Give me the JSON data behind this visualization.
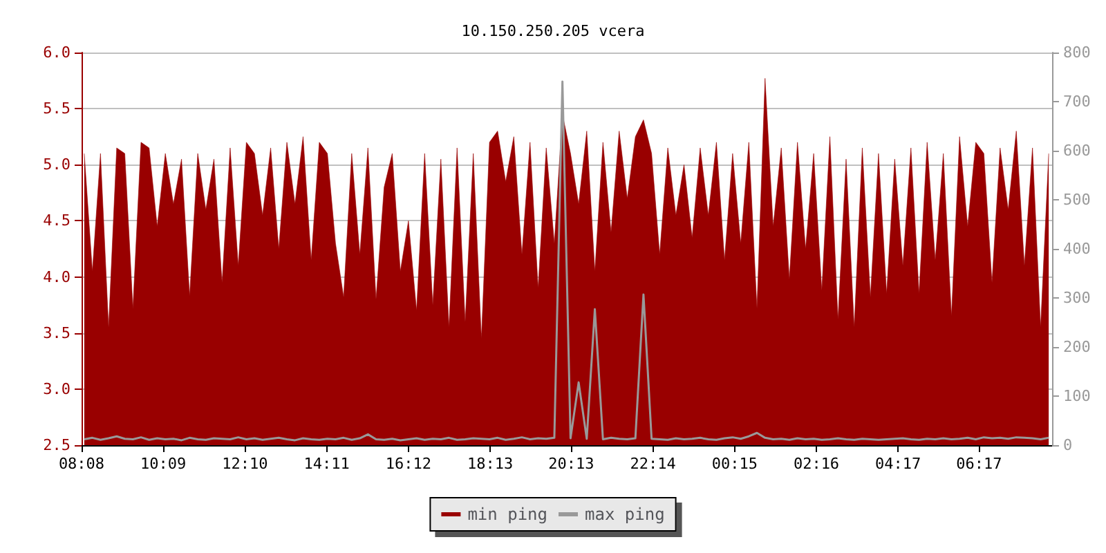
{
  "chart_data": {
    "type": "area",
    "title": "10.150.250.205 vcera",
    "x": [
      "--01-01T08:12",
      "--01-01T08:24",
      "--01-01T08:36",
      "--01-01T08:48",
      "--01-01T09:00",
      "--01-01T09:12",
      "--01-01T09:24",
      "--01-01T09:36",
      "--01-01T09:48",
      "--01-01T10:00",
      "--01-01T10:12",
      "--01-01T10:24",
      "--01-01T10:36",
      "--01-01T10:48",
      "--01-01T11:00",
      "--01-01T11:12",
      "--01-01T11:24",
      "--01-01T11:36",
      "--01-01T11:48",
      "--01-01T12:00",
      "--01-01T12:12",
      "--01-01T12:24",
      "--01-01T12:36",
      "--01-01T12:48",
      "--01-01T13:00",
      "--01-01T13:12",
      "--01-01T13:24",
      "--01-01T13:36",
      "--01-01T13:48",
      "--01-01T14:00",
      "--01-01T14:12",
      "--01-01T14:24",
      "--01-01T14:36",
      "--01-01T14:48",
      "--01-01T15:00",
      "--01-01T15:12",
      "--01-01T15:24",
      "--01-01T15:36",
      "--01-01T15:48",
      "--01-01T16:00",
      "--01-01T16:12",
      "--01-01T16:24",
      "--01-01T16:36",
      "--01-01T16:48",
      "--01-01T17:00",
      "--01-01T17:12",
      "--01-01T17:24",
      "--01-01T17:36",
      "--01-01T17:48",
      "--01-01T18:00",
      "--01-01T18:12",
      "--01-01T18:24",
      "--01-01T18:36",
      "--01-01T18:48",
      "--01-01T19:00",
      "--01-01T19:12",
      "--01-01T19:24",
      "--01-01T19:36",
      "--01-01T19:48",
      "--01-01T20:00",
      "--01-01T20:12",
      "--01-01T20:24",
      "--01-01T20:36",
      "--01-01T20:48",
      "--01-01T21:00",
      "--01-01T21:12",
      "--01-01T21:24",
      "--01-01T21:36",
      "--01-01T21:48",
      "--01-01T22:00",
      "--01-01T22:12",
      "--01-01T22:24",
      "--01-01T22:36",
      "--01-01T22:48",
      "--01-01T23:00",
      "--01-01T23:12",
      "--01-01T23:24",
      "--01-01T23:36",
      "--01-01T23:48",
      "--01-02T00:00",
      "--01-02T00:12",
      "--01-02T00:24",
      "--01-02T00:36",
      "--01-02T00:48",
      "--01-02T01:00",
      "--01-02T01:12",
      "--01-02T01:24",
      "--01-02T01:36",
      "--01-02T01:48",
      "--01-02T02:00",
      "--01-02T02:12",
      "--01-02T02:24",
      "--01-02T02:36",
      "--01-02T02:48",
      "--01-02T03:00",
      "--01-02T03:12",
      "--01-02T03:24",
      "--01-02T03:36",
      "--01-02T03:48",
      "--01-02T04:00",
      "--01-02T04:12",
      "--01-02T04:24",
      "--01-02T04:36",
      "--01-02T04:48",
      "--01-02T05:00",
      "--01-02T05:12",
      "--01-02T05:24",
      "--01-02T05:36",
      "--01-02T05:48",
      "--01-02T06:00",
      "--01-02T06:12",
      "--01-02T06:24",
      "--01-02T06:36",
      "--01-02T06:48",
      "--01-02T07:00",
      "--01-02T07:12",
      "--01-02T07:24",
      "--01-02T07:36",
      "--01-02T07:48",
      "--01-02T08:00"
    ],
    "series": [
      {
        "name": "min ping",
        "color": "#990000",
        "values": [
          5.1,
          4.05,
          5.1,
          3.55,
          5.15,
          5.1,
          3.72,
          5.2,
          5.15,
          4.45,
          5.1,
          4.65,
          5.05,
          3.83,
          5.1,
          4.6,
          5.05,
          3.95,
          5.15,
          4.1,
          5.2,
          5.1,
          4.55,
          5.15,
          4.25,
          5.2,
          4.65,
          5.25,
          4.15,
          5.2,
          5.1,
          4.3,
          3.82,
          5.1,
          4.2,
          5.15,
          3.8,
          4.8,
          5.1,
          4.05,
          4.5,
          3.7,
          5.1,
          3.75,
          5.05,
          3.55,
          5.15,
          3.6,
          5.1,
          3.45,
          5.2,
          5.3,
          4.85,
          5.25,
          4.2,
          5.2,
          3.9,
          5.15,
          4.3,
          5.45,
          5.1,
          4.65,
          5.3,
          4.05,
          5.2,
          4.4,
          5.3,
          4.7,
          5.25,
          5.4,
          5.1,
          4.2,
          5.15,
          4.55,
          5.0,
          4.35,
          5.15,
          4.55,
          5.2,
          4.15,
          5.1,
          4.3,
          5.2,
          3.72,
          5.77,
          4.45,
          5.15,
          3.98,
          5.2,
          4.25,
          5.1,
          3.88,
          5.25,
          3.62,
          5.05,
          3.55,
          5.15,
          3.82,
          5.1,
          3.85,
          5.05,
          4.1,
          5.15,
          3.85,
          5.2,
          4.15,
          5.1,
          3.65,
          5.25,
          4.45,
          5.2,
          5.1,
          3.95,
          5.15,
          4.6,
          5.3,
          4.1,
          5.15,
          3.55,
          5.1
        ]
      },
      {
        "name": "max ping",
        "type": "line",
        "axis": "y2",
        "color": "#999999",
        "values": [
          12,
          15,
          11,
          14,
          18,
          13,
          12,
          16,
          11,
          14,
          12,
          13,
          10,
          15,
          12,
          11,
          14,
          13,
          12,
          16,
          12,
          14,
          11,
          13,
          15,
          12,
          10,
          14,
          12,
          11,
          13,
          12,
          15,
          11,
          14,
          22,
          12,
          11,
          13,
          10,
          12,
          14,
          11,
          13,
          12,
          15,
          11,
          12,
          14,
          13,
          12,
          15,
          11,
          13,
          16,
          12,
          14,
          13,
          15,
          741,
          14,
          128,
          13,
          277,
          12,
          15,
          13,
          12,
          14,
          307,
          13,
          12,
          11,
          14,
          12,
          13,
          15,
          12,
          11,
          14,
          16,
          13,
          18,
          25,
          15,
          12,
          13,
          11,
          14,
          12,
          13,
          11,
          12,
          14,
          12,
          11,
          13,
          12,
          11,
          12,
          13,
          14,
          12,
          11,
          13,
          12,
          14,
          12,
          13,
          15,
          12,
          16,
          14,
          15,
          13,
          16,
          15,
          14,
          12,
          15
        ]
      }
    ],
    "xlim": [
      "--01-01T08:08",
      "--01-02T08:05"
    ],
    "xticks": [
      {
        "value": "--01-01T08:08",
        "label": "08:08"
      },
      {
        "value": "--01-01T10:09",
        "label": "10:09"
      },
      {
        "value": "--01-01T12:10",
        "label": "12:10"
      },
      {
        "value": "--01-01T14:11",
        "label": "14:11"
      },
      {
        "value": "--01-01T16:12",
        "label": "16:12"
      },
      {
        "value": "--01-01T18:13",
        "label": "18:13"
      },
      {
        "value": "--01-01T20:13",
        "label": "20:13"
      },
      {
        "value": "--01-01T22:14",
        "label": "22:14"
      },
      {
        "value": "--01-02T00:15",
        "label": "00:15"
      },
      {
        "value": "--01-02T02:16",
        "label": "02:16"
      },
      {
        "value": "--01-02T04:17",
        "label": "04:17"
      },
      {
        "value": "--01-02T06:17",
        "label": "06:17"
      }
    ],
    "ylim": [
      2.5,
      6.0
    ],
    "yticks": [
      2.5,
      {
        "value": 3,
        "label": "3.0"
      },
      3.5,
      {
        "value": 4,
        "label": "4.0"
      },
      4.5,
      {
        "value": 5,
        "label": "5.0"
      },
      5.5,
      {
        "value": 6,
        "label": "6.0"
      }
    ],
    "y2lim": [
      0,
      800
    ],
    "y2ticks": [
      0,
      100,
      200,
      300,
      400,
      500,
      600,
      700,
      800
    ],
    "grid": "y",
    "legend": "bottom",
    "marker": "none"
  }
}
